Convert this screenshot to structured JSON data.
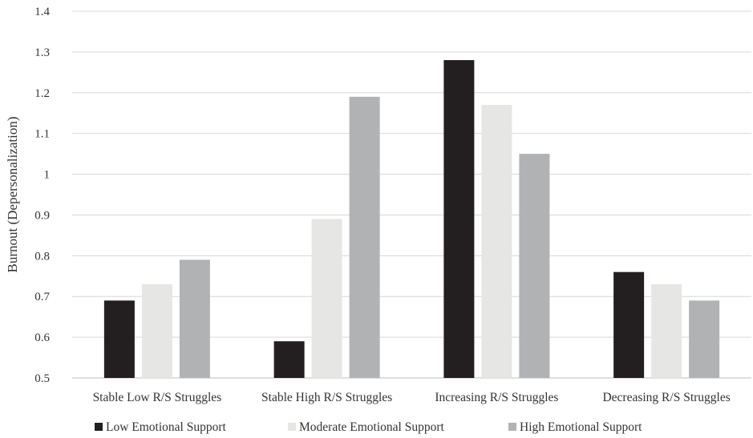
{
  "chart_data": {
    "type": "bar",
    "title": "",
    "xlabel": "",
    "ylabel": "Burnout (Depersonalization)",
    "ylim": [
      0.5,
      1.4
    ],
    "yticks": [
      "0.5",
      "0.6",
      "0.7",
      "0.8",
      "0.9",
      "1",
      "1.1",
      "1.2",
      "1.3",
      "1.4"
    ],
    "grid": true,
    "legend_position": "bottom",
    "categories": [
      "Stable Low R/S Struggles",
      "Stable High R/S Struggles",
      "Increasing R/S Struggles",
      "Decreasing R/S Struggles"
    ],
    "series": [
      {
        "name": "Low Emotional Support",
        "color": "#231f20",
        "values": [
          0.69,
          0.59,
          1.28,
          0.76
        ]
      },
      {
        "name": "Moderate Emotional Support",
        "color": "#e6e6e4",
        "values": [
          0.73,
          0.89,
          1.17,
          0.73
        ]
      },
      {
        "name": "High Emotional Support",
        "color": "#b1b2b4",
        "values": [
          0.79,
          1.19,
          1.05,
          0.69
        ]
      }
    ]
  }
}
